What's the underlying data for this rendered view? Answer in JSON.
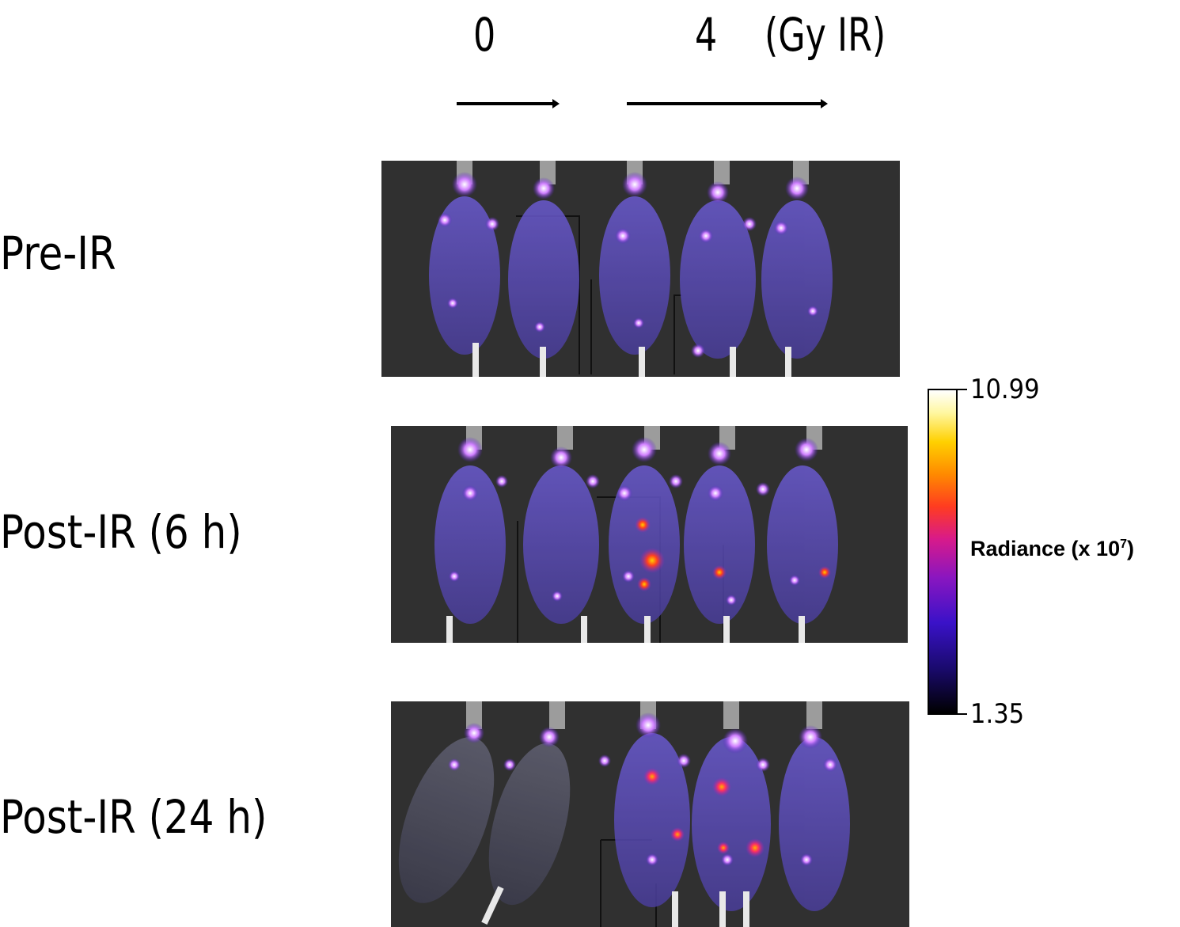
{
  "header": {
    "dose_zero": "0",
    "dose_four": "4",
    "dose_unit": "(Gy IR)"
  },
  "rows": [
    {
      "label": "Pre-IR"
    },
    {
      "label": "Post-IR (6 h)"
    },
    {
      "label": "Post-IR (24 h)"
    }
  ],
  "colorbar": {
    "max": "10.99",
    "min": "1.35",
    "title_prefix": "Radiance (x 10",
    "title_exponent": "7",
    "title_suffix": ")"
  }
}
